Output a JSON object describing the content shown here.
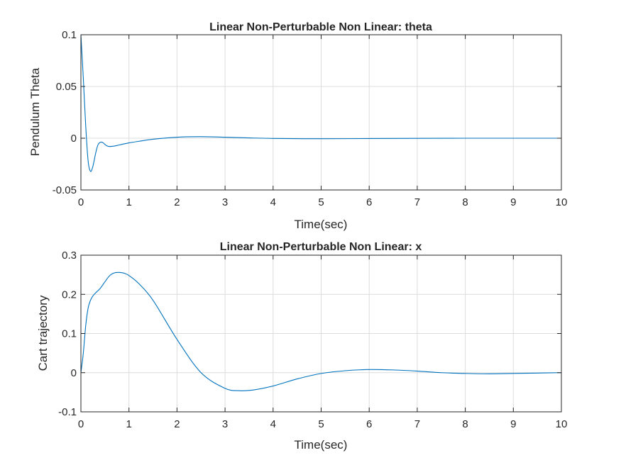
{
  "chart_data": [
    {
      "type": "line",
      "title": "Linear Non-Perturbable Non Linear: theta",
      "xlabel": "Time(sec)",
      "ylabel": "Pendulum Theta",
      "xlim": [
        0,
        10
      ],
      "ylim": [
        -0.05,
        0.1
      ],
      "xticks": [
        "0",
        "1",
        "2",
        "3",
        "4",
        "5",
        "6",
        "7",
        "8",
        "9",
        "10"
      ],
      "yticks": [
        "-0.05",
        "0",
        "0.05",
        "0.1"
      ],
      "grid": true,
      "color": "#0072bd",
      "series": [
        {
          "name": "theta",
          "x": [
            0,
            0.05,
            0.1,
            0.15,
            0.2,
            0.25,
            0.3,
            0.35,
            0.4,
            0.45,
            0.5,
            0.55,
            0.6,
            0.7,
            0.8,
            1.0,
            1.2,
            1.5,
            2.0,
            2.5,
            3.0,
            3.5,
            4.0,
            5.0,
            6.0,
            7.0,
            8.0,
            9.0,
            10.0
          ],
          "y": [
            0.1,
            0.058,
            0.012,
            -0.022,
            -0.032,
            -0.027,
            -0.016,
            -0.007,
            -0.004,
            -0.004,
            -0.006,
            -0.0075,
            -0.008,
            -0.0075,
            -0.0065,
            -0.0045,
            -0.003,
            -0.001,
            0.001,
            0.0015,
            0.001,
            0.0003,
            -0.0002,
            -0.0005,
            -0.0003,
            -0.0001,
            0.0,
            0.0,
            0.0
          ]
        }
      ]
    },
    {
      "type": "line",
      "title": "Linear Non-Perturbable Non Linear: x",
      "xlabel": "Time(sec)",
      "ylabel": "Cart trajectory",
      "xlim": [
        0,
        10
      ],
      "ylim": [
        -0.1,
        0.3
      ],
      "xticks": [
        "0",
        "1",
        "2",
        "3",
        "4",
        "5",
        "6",
        "7",
        "8",
        "9",
        "10"
      ],
      "yticks": [
        "-0.1",
        "0",
        "0.1",
        "0.2",
        "0.3"
      ],
      "grid": true,
      "color": "#0072bd",
      "series": [
        {
          "name": "x",
          "x": [
            0,
            0.05,
            0.1,
            0.15,
            0.2,
            0.25,
            0.3,
            0.4,
            0.5,
            0.6,
            0.7,
            0.8,
            0.9,
            1.0,
            1.2,
            1.5,
            2.0,
            2.5,
            3.0,
            3.3,
            3.6,
            4.0,
            4.5,
            5.0,
            5.5,
            6.0,
            6.5,
            7.0,
            7.5,
            8.0,
            8.5,
            9.0,
            9.5,
            10.0
          ],
          "y": [
            0,
            0.05,
            0.12,
            0.165,
            0.185,
            0.196,
            0.203,
            0.215,
            0.232,
            0.248,
            0.255,
            0.256,
            0.254,
            0.248,
            0.228,
            0.185,
            0.085,
            0.0,
            -0.04,
            -0.046,
            -0.044,
            -0.034,
            -0.016,
            -0.002,
            0.005,
            0.008,
            0.007,
            0.004,
            0.0,
            -0.002,
            -0.003,
            -0.002,
            -0.001,
            0.0
          ]
        }
      ]
    }
  ]
}
